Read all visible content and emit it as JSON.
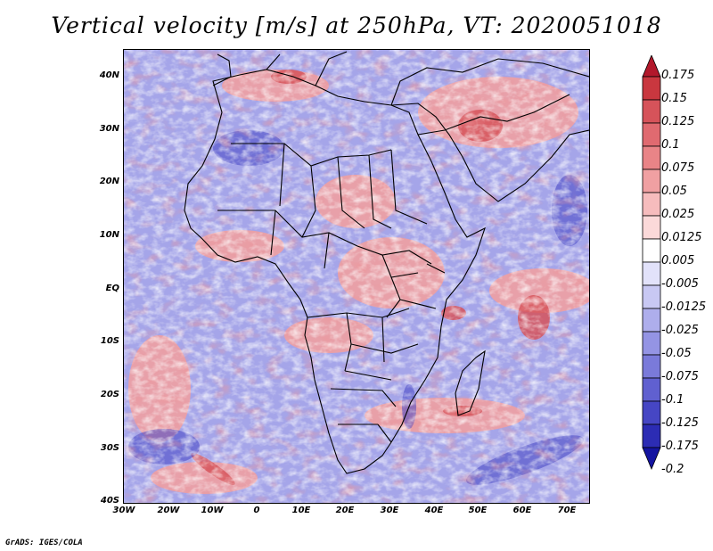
{
  "title": "Vertical velocity [m/s] at 250hPa, VT: 2020051018",
  "lat_ticks": [
    "40N",
    "30N",
    "20N",
    "10N",
    "EQ",
    "10S",
    "20S",
    "30S",
    "40S"
  ],
  "lon_ticks": [
    "30W",
    "20W",
    "10W",
    "0",
    "10E",
    "20E",
    "30E",
    "40E",
    "50E",
    "60E",
    "70E"
  ],
  "colorbar": {
    "levels": [
      "0.175",
      "0.15",
      "0.125",
      "0.1",
      "0.075",
      "0.05",
      "0.025",
      "0.0125",
      "0.005",
      "-0.005",
      "-0.0125",
      "-0.025",
      "-0.05",
      "-0.075",
      "-0.1",
      "-0.125",
      "-0.175",
      "-0.2"
    ],
    "colors": [
      "#b2182b",
      "#c9373f",
      "#d6535a",
      "#e06a70",
      "#e98487",
      "#f0a0a2",
      "#f6bcbd",
      "#fbd9d9",
      "#ffffff",
      "#e2e2fa",
      "#c8c8f3",
      "#aeaeec",
      "#9494e4",
      "#7a7ada",
      "#6060d0",
      "#4646c4",
      "#2c2cb4",
      "#1414a0"
    ]
  },
  "credit": "GrADS: IGES/COLA"
}
